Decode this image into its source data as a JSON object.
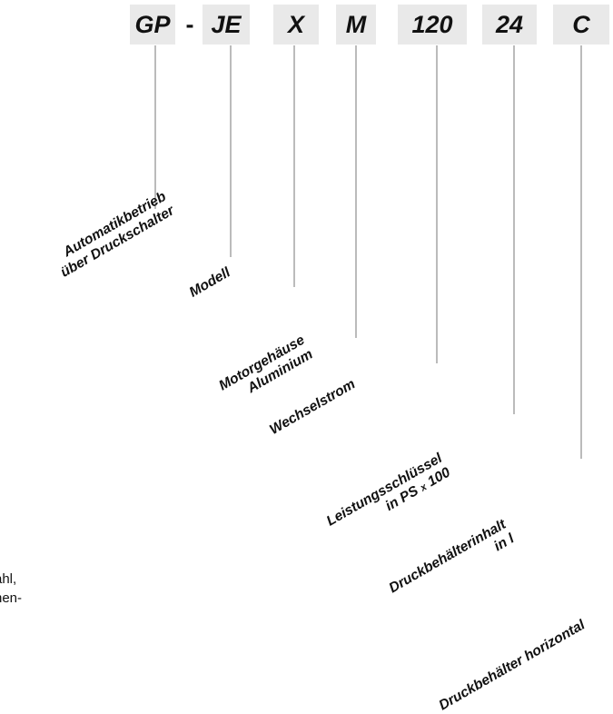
{
  "code": {
    "segments": [
      "GP",
      "JE",
      "X",
      "M",
      "120",
      "24",
      "C"
    ],
    "separator": "-"
  },
  "labels": {
    "automatik": {
      "line1": "Automatikbetrieb",
      "line2": "über Druckschalter"
    },
    "modell": "Modell",
    "motorgehaeuse": {
      "line1": "Motorgehäuse",
      "line2": "Aluminium"
    },
    "wechselstrom": "Wechselstrom",
    "leistung": {
      "line1": "Leistungsschlüssel",
      "line2_pre": "in PS",
      "line2_small": "x",
      "line2_post": "100"
    },
    "druckbehaelter_inhalt": {
      "line1": "Druckbehälterinhalt",
      "line2": "in l"
    },
    "druckbehaelter_horizontal": "Druckbehälter horizontal"
  },
  "cutoff_text": {
    "line1": "ahl,",
    "line2": "hen-"
  },
  "colors": {
    "box_bg": "#e9e9e9",
    "text": "#111111",
    "line": "#777777"
  }
}
